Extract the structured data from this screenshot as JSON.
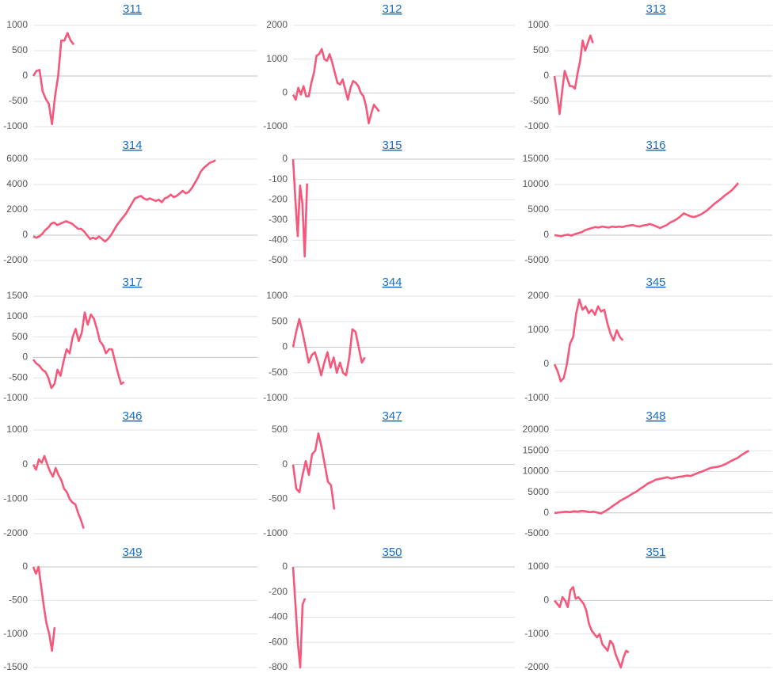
{
  "chart_data": [
    {
      "type": "line",
      "title": "311",
      "color": "#f4587a",
      "grid": true,
      "xlim": [
        0,
        72
      ],
      "ylim": [
        -1000,
        1000
      ],
      "yticks": [
        -1000,
        -500,
        0,
        500,
        1000
      ],
      "values": [
        0,
        100,
        120,
        -300,
        -450,
        -550,
        -950,
        -400,
        0,
        700,
        700,
        850,
        700,
        620
      ]
    },
    {
      "type": "line",
      "title": "312",
      "color": "#f4587a",
      "grid": true,
      "xlim": [
        0,
        85
      ],
      "ylim": [
        -1000,
        2000
      ],
      "yticks": [
        -1000,
        0,
        1000,
        2000
      ],
      "values": [
        -50,
        -200,
        150,
        -50,
        200,
        -100,
        -100,
        300,
        600,
        1100,
        1150,
        1300,
        1000,
        950,
        1150,
        900,
        600,
        300,
        250,
        400,
        100,
        -200,
        150,
        350,
        300,
        200,
        0,
        -100,
        -400,
        -900,
        -600,
        -350,
        -450,
        -550
      ]
    },
    {
      "type": "line",
      "title": "313",
      "color": "#f4587a",
      "grid": true,
      "xlim": [
        0,
        85
      ],
      "ylim": [
        -1000,
        1000
      ],
      "yticks": [
        -1000,
        -500,
        0,
        500,
        1000
      ],
      "values": [
        0,
        -350,
        -750,
        -300,
        100,
        -50,
        -200,
        -200,
        -250,
        50,
        300,
        700,
        500,
        650,
        800,
        650
      ]
    },
    {
      "type": "line",
      "title": "314",
      "color": "#f4587a",
      "grid": true,
      "xlim": [
        0,
        75
      ],
      "ylim": [
        -2000,
        6000
      ],
      "yticks": [
        -2000,
        0,
        2000,
        4000,
        6000
      ],
      "values": [
        -100,
        -200,
        -100,
        100,
        400,
        600,
        900,
        1000,
        800,
        900,
        1000,
        1100,
        1000,
        900,
        700,
        500,
        500,
        300,
        0,
        -300,
        -200,
        -300,
        -100,
        -300,
        -500,
        -300,
        0,
        400,
        800,
        1100,
        1400,
        1700,
        2100,
        2500,
        2900,
        3000,
        3100,
        2900,
        2800,
        2900,
        2800,
        2700,
        2800,
        2600,
        2900,
        3000,
        3200,
        3000,
        3100,
        3300,
        3500,
        3300,
        3400,
        3700,
        4100,
        4500,
        5000,
        5300,
        5500,
        5700,
        5800,
        5900
      ]
    },
    {
      "type": "line",
      "title": "315",
      "color": "#f4587a",
      "grid": true,
      "xlim": [
        0,
        95
      ],
      "ylim": [
        -500,
        0
      ],
      "yticks": [
        -500,
        -400,
        -300,
        -200,
        -100,
        0
      ],
      "values": [
        0,
        -200,
        -380,
        -130,
        -220,
        -480,
        -120
      ]
    },
    {
      "type": "line",
      "title": "316",
      "color": "#f4587a",
      "grid": true,
      "xlim": [
        0,
        64
      ],
      "ylim": [
        -5000,
        15000
      ],
      "yticks": [
        -5000,
        0,
        5000,
        10000,
        15000
      ],
      "values": [
        0,
        -100,
        -200,
        0,
        100,
        -100,
        200,
        400,
        600,
        1000,
        1200,
        1400,
        1600,
        1500,
        1700,
        1600,
        1500,
        1700,
        1600,
        1700,
        1600,
        1800,
        1900,
        2000,
        1800,
        1700,
        1900,
        2000,
        2200,
        2000,
        1700,
        1400,
        1700,
        2000,
        2500,
        2800,
        3200,
        3700,
        4300,
        4000,
        3700,
        3600,
        3800,
        4100,
        4500,
        5000,
        5600,
        6200,
        6700,
        7200,
        7800,
        8300,
        8800,
        9500,
        10300
      ]
    },
    {
      "type": "line",
      "title": "317",
      "color": "#f4587a",
      "grid": true,
      "xlim": [
        0,
        74
      ],
      "ylim": [
        -1000,
        1500
      ],
      "yticks": [
        -1000,
        -500,
        0,
        500,
        1000,
        1500
      ],
      "values": [
        -50,
        -150,
        -200,
        -300,
        -350,
        -500,
        -750,
        -650,
        -300,
        -450,
        -100,
        200,
        100,
        500,
        700,
        400,
        600,
        1100,
        800,
        1050,
        950,
        700,
        400,
        300,
        100,
        200,
        200,
        -100,
        -400,
        -650,
        -600
      ]
    },
    {
      "type": "line",
      "title": "344",
      "color": "#f4587a",
      "grid": true,
      "xlim": [
        0,
        71
      ],
      "ylim": [
        -1000,
        1000
      ],
      "yticks": [
        -1000,
        -500,
        0,
        500,
        1000
      ],
      "values": [
        0,
        300,
        550,
        300,
        0,
        -300,
        -150,
        -100,
        -300,
        -550,
        -300,
        -100,
        -400,
        -200,
        -500,
        -300,
        -500,
        -550,
        -200,
        350,
        300,
        0,
        -300,
        -200
      ]
    },
    {
      "type": "line",
      "title": "345",
      "color": "#f4587a",
      "grid": true,
      "xlim": [
        0,
        70
      ],
      "ylim": [
        -1000,
        2000
      ],
      "yticks": [
        -1000,
        0,
        1000,
        2000
      ],
      "values": [
        0,
        -200,
        -500,
        -400,
        0,
        600,
        800,
        1500,
        1900,
        1600,
        1700,
        1500,
        1600,
        1450,
        1700,
        1550,
        1600,
        1200,
        900,
        700,
        1000,
        800,
        700
      ]
    },
    {
      "type": "line",
      "title": "346",
      "color": "#f4587a",
      "grid": true,
      "xlim": [
        0,
        80
      ],
      "ylim": [
        -2000,
        1000
      ],
      "yticks": [
        -2000,
        -1000,
        0,
        1000
      ],
      "values": [
        0,
        -150,
        150,
        50,
        250,
        0,
        -200,
        -350,
        -100,
        -300,
        -450,
        -700,
        -800,
        -1000,
        -1100,
        -1150,
        -1400,
        -1600,
        -1850
      ]
    },
    {
      "type": "line",
      "title": "347",
      "color": "#f4587a",
      "grid": true,
      "xlim": [
        0,
        70
      ],
      "ylim": [
        -1000,
        500
      ],
      "yticks": [
        -1000,
        -500,
        0,
        500
      ],
      "values": [
        0,
        -350,
        -400,
        -150,
        50,
        -150,
        150,
        200,
        450,
        250,
        0,
        -250,
        -300,
        -650
      ]
    },
    {
      "type": "line",
      "title": "348",
      "color": "#f4587a",
      "grid": true,
      "xlim": [
        0,
        56
      ],
      "ylim": [
        -5000,
        20000
      ],
      "yticks": [
        -5000,
        0,
        5000,
        10000,
        15000,
        20000
      ],
      "values": [
        0,
        100,
        200,
        300,
        200,
        400,
        300,
        500,
        400,
        200,
        300,
        100,
        -100,
        400,
        1000,
        1700,
        2300,
        3000,
        3500,
        4000,
        4600,
        5100,
        5800,
        6400,
        7100,
        7500,
        8000,
        8200,
        8400,
        8600,
        8300,
        8500,
        8700,
        8800,
        9000,
        8900,
        9300,
        9700,
        10000,
        10400,
        10800,
        11000,
        11100,
        11400,
        11800,
        12300,
        12800,
        13200,
        13900,
        14500,
        15000
      ]
    },
    {
      "type": "line",
      "title": "349",
      "color": "#f4587a",
      "grid": true,
      "xlim": [
        0,
        84
      ],
      "ylim": [
        -1500,
        0
      ],
      "yticks": [
        -1500,
        -1000,
        -500,
        0
      ],
      "values": [
        0,
        -100,
        0,
        -300,
        -600,
        -850,
        -1000,
        -1250,
        -900
      ]
    },
    {
      "type": "line",
      "title": "350",
      "color": "#f4587a",
      "grid": true,
      "xlim": [
        0,
        93
      ],
      "ylim": [
        -800,
        0
      ],
      "yticks": [
        -800,
        -600,
        -400,
        -200,
        0
      ],
      "values": [
        0,
        -300,
        -600,
        -800,
        -300,
        -250
      ]
    },
    {
      "type": "line",
      "title": "351",
      "color": "#f4587a",
      "grid": true,
      "xlim": [
        0,
        82
      ],
      "ylim": [
        -2000,
        1000
      ],
      "yticks": [
        -2000,
        -1000,
        0,
        1000
      ],
      "values": [
        0,
        -100,
        -200,
        100,
        0,
        -200,
        300,
        400,
        50,
        100,
        0,
        -100,
        -300,
        -700,
        -900,
        -1000,
        -1100,
        -1000,
        -1300,
        -1400,
        -1500,
        -1200,
        -1300,
        -1600,
        -1800,
        -2000,
        -1700,
        -1500,
        -1550
      ]
    }
  ]
}
